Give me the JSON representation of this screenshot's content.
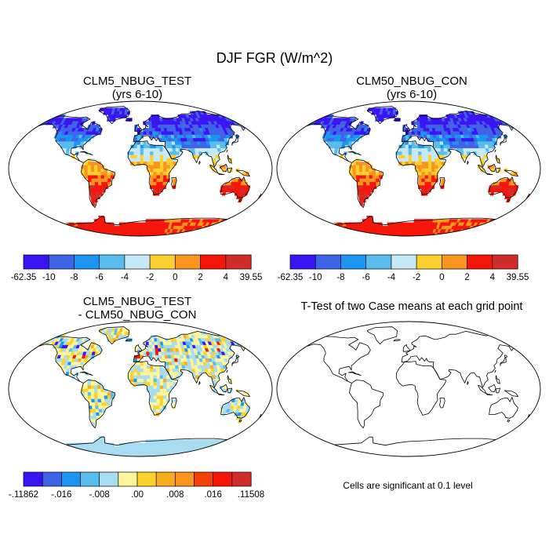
{
  "title": "DJF FGR (W/m^2)",
  "panels": [
    {
      "title": "CLM5_NBUG_TEST",
      "subtitle": "(yrs 6-10)"
    },
    {
      "title": "CLM50_NBUG_CON",
      "subtitle": "(yrs 6-10)"
    },
    {
      "title": "CLM5_NBUG_TEST",
      "subtitle": "- CLM50_NBUG_CON"
    },
    {
      "title": "T-Test of two Case means at each grid point",
      "subtitle": ""
    }
  ],
  "colorbar_main": {
    "colors": [
      "#3a14f5",
      "#3f63e6",
      "#1b95f0",
      "#58bdec",
      "#c7e9f7",
      "#fbd22d",
      "#f7951e",
      "#f5160a",
      "#d12c2c"
    ],
    "labels": [
      "-62.35",
      "-10",
      "-8",
      "-6",
      "-4",
      "-2",
      "0",
      "2",
      "4",
      "39.55"
    ]
  },
  "colorbar_diff": {
    "colors": [
      "#3a14f5",
      "#3f63e6",
      "#1b95f0",
      "#58bdec",
      "#a8dcf0",
      "#fdf59a",
      "#fbd22d",
      "#f7ab1e",
      "#f7951e",
      "#f5400a",
      "#f5160a",
      "#d12c2c"
    ],
    "labels": [
      "-.11862",
      "-.016",
      "-.008",
      ".00",
      ".008",
      ".016",
      ".11508"
    ]
  },
  "significance_note": "Cells are significant at 0.1 level"
}
